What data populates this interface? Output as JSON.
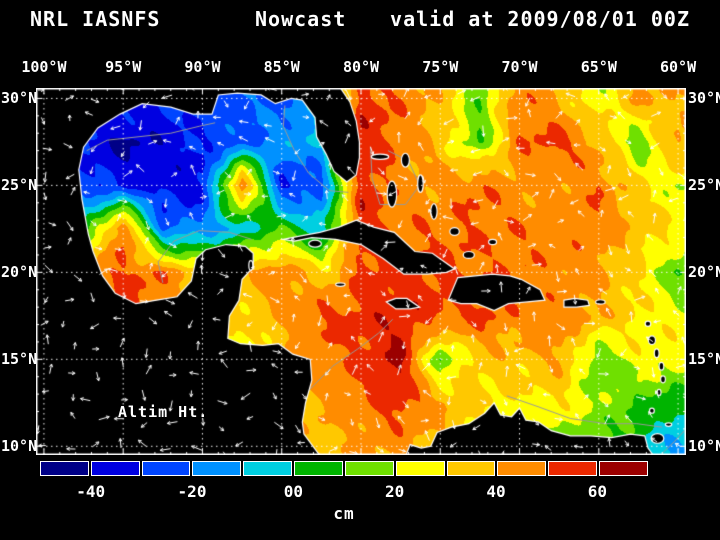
{
  "header": {
    "left": "NRL IASNFS",
    "center": "Nowcast",
    "right": "valid at 2009/08/01 00Z"
  },
  "map": {
    "annotation": "Altim Ht."
  },
  "colorbar": {
    "unit": "cm"
  },
  "chart_data": {
    "type": "heatmap",
    "title": "NRL IASNFS Nowcast valid at 2009/08/01 00Z",
    "variable": "Altim Ht.",
    "units": "cm",
    "lon_domain": [
      -100.5,
      -59.5
    ],
    "lat_domain": [
      9.5,
      30.6
    ],
    "lon_ticks": {
      "values": [
        -100,
        -95,
        -90,
        -85,
        -80,
        -75,
        -70,
        -65,
        -60
      ],
      "labels": [
        "100°W",
        "95°W",
        "90°W",
        "85°W",
        "80°W",
        "75°W",
        "70°W",
        "65°W",
        "60°W"
      ]
    },
    "lat_ticks": {
      "values": [
        30,
        25,
        20,
        15,
        10
      ],
      "labels": [
        "30°N",
        "25°N",
        "20°N",
        "15°N",
        "10°N"
      ]
    },
    "scale": {
      "min": -50,
      "max": 70,
      "step": 10,
      "unit": "cm",
      "colors": [
        "#000087",
        "#0000e1",
        "#0045ff",
        "#0091ff",
        "#00cfe1",
        "#00b400",
        "#6fe000",
        "#ffff00",
        "#ffc800",
        "#ff8c00",
        "#eb2800",
        "#9b0000"
      ],
      "tick_values": [
        -40,
        -20,
        0,
        20,
        40,
        60
      ],
      "tick_labels": [
        "-40",
        "-20",
        "00",
        "20",
        "40",
        "60"
      ]
    },
    "grid_lon": [
      -100,
      -97.5,
      -95,
      -92.5,
      -90,
      -87.5,
      -85,
      -82.5,
      -80,
      -77.5,
      -75,
      -72.5,
      -70,
      -67.5,
      -65,
      -62.5,
      -60
    ],
    "grid_lat": [
      30,
      27.5,
      25,
      22.5,
      20,
      17.5,
      15,
      12.5,
      10
    ],
    "values": [
      [
        -18,
        -22,
        -26,
        -30,
        -24,
        -20,
        -24,
        -12,
        55,
        48,
        38,
        12,
        50,
        38,
        22,
        42,
        38
      ],
      [
        -20,
        -32,
        -42,
        -36,
        -30,
        -24,
        -14,
        -8,
        58,
        48,
        36,
        10,
        48,
        54,
        38,
        12,
        42
      ],
      [
        -14,
        -26,
        -32,
        -36,
        -34,
        53,
        -32,
        -24,
        58,
        44,
        42,
        50,
        42,
        44,
        48,
        32,
        20
      ],
      [
        -8,
        2,
        52,
        -22,
        -16,
        -6,
        10,
        -8,
        55,
        48,
        48,
        50,
        48,
        44,
        48,
        36,
        30
      ],
      [
        -6,
        42,
        52,
        48,
        32,
        38,
        48,
        32,
        52,
        54,
        52,
        48,
        48,
        46,
        42,
        32,
        10
      ],
      [
        2,
        42,
        52,
        46,
        36,
        30,
        42,
        52,
        54,
        58,
        52,
        52,
        46,
        46,
        40,
        30,
        26
      ],
      [
        2,
        12,
        46,
        42,
        32,
        22,
        36,
        46,
        52,
        62,
        10,
        36,
        36,
        42,
        10,
        26,
        26
      ],
      [
        0,
        0,
        2,
        2,
        22,
        30,
        36,
        42,
        46,
        56,
        42,
        30,
        26,
        30,
        20,
        10,
        2
      ],
      [
        0,
        0,
        0,
        2,
        12,
        22,
        32,
        36,
        42,
        42,
        36,
        26,
        20,
        14,
        10,
        2,
        -14
      ]
    ],
    "vectors": {
      "glyph": "arrow",
      "color": "#ffffff"
    },
    "geo": {
      "contour_color": "#999999",
      "land_polygons": [
        {
          "name": "mainland",
          "pts": [
            [
              -100.5,
              30.6
            ],
            [
              -81.3,
              30.6
            ],
            [
              -80.7,
              29.8
            ],
            [
              -80.3,
              28.7
            ],
            [
              -80.1,
              27.5
            ],
            [
              -80.1,
              26.6
            ],
            [
              -80.3,
              25.6
            ],
            [
              -80.9,
              25.2
            ],
            [
              -81.7,
              25.8
            ],
            [
              -82.2,
              26.8
            ],
            [
              -82.8,
              27.8
            ],
            [
              -82.9,
              28.9
            ],
            [
              -83.7,
              29.9
            ],
            [
              -84.4,
              30.0
            ],
            [
              -85.4,
              29.7
            ],
            [
              -86.3,
              30.2
            ],
            [
              -87.8,
              30.3
            ],
            [
              -89.0,
              30.2
            ],
            [
              -89.4,
              29.1
            ],
            [
              -90.6,
              29.1
            ],
            [
              -92.0,
              29.5
            ],
            [
              -93.8,
              29.7
            ],
            [
              -95.2,
              29.1
            ],
            [
              -96.6,
              28.3
            ],
            [
              -97.5,
              27.2
            ],
            [
              -97.8,
              25.9
            ],
            [
              -97.6,
              24.2
            ],
            [
              -97.2,
              22.2
            ],
            [
              -96.9,
              21.2
            ],
            [
              -96.3,
              19.8
            ],
            [
              -95.5,
              18.8
            ],
            [
              -94.2,
              18.2
            ],
            [
              -92.9,
              18.4
            ],
            [
              -91.6,
              18.6
            ],
            [
              -90.7,
              19.5
            ],
            [
              -90.4,
              20.8
            ],
            [
              -89.8,
              21.3
            ],
            [
              -88.5,
              21.6
            ],
            [
              -87.3,
              21.5
            ],
            [
              -86.8,
              21.1
            ],
            [
              -86.8,
              20.3
            ],
            [
              -87.5,
              19.6
            ],
            [
              -87.7,
              18.4
            ],
            [
              -88.3,
              17.5
            ],
            [
              -88.4,
              16.2
            ],
            [
              -87.6,
              15.9
            ],
            [
              -86.2,
              15.8
            ],
            [
              -85.2,
              15.9
            ],
            [
              -84.3,
              15.3
            ],
            [
              -83.2,
              15.0
            ],
            [
              -83.1,
              13.8
            ],
            [
              -83.5,
              12.5
            ],
            [
              -83.7,
              11.4
            ],
            [
              -83.6,
              10.7
            ],
            [
              -82.7,
              9.6
            ],
            [
              -82.4,
              9.4
            ],
            [
              -100.5,
              9.4
            ]
          ]
        },
        {
          "name": "south-america",
          "pts": [
            [
              -77.2,
              9.4
            ],
            [
              -76.9,
              10.1
            ],
            [
              -76.2,
              9.9
            ],
            [
              -75.6,
              10.0
            ],
            [
              -75.2,
              10.8
            ],
            [
              -74.3,
              11.1
            ],
            [
              -73.2,
              11.3
            ],
            [
              -72.2,
              11.9
            ],
            [
              -71.6,
              12.5
            ],
            [
              -71.2,
              11.8
            ],
            [
              -70.5,
              11.7
            ],
            [
              -70.0,
              12.2
            ],
            [
              -69.6,
              11.5
            ],
            [
              -68.8,
              11.4
            ],
            [
              -68.0,
              10.9
            ],
            [
              -66.8,
              10.6
            ],
            [
              -65.5,
              10.6
            ],
            [
              -64.2,
              10.5
            ],
            [
              -63.0,
              10.7
            ],
            [
              -62.1,
              10.6
            ],
            [
              -61.9,
              9.9
            ],
            [
              -61.5,
              9.4
            ]
          ]
        },
        {
          "name": "cuba",
          "pts": [
            [
              -84.9,
              21.9
            ],
            [
              -83.8,
              22.1
            ],
            [
              -82.6,
              22.3
            ],
            [
              -81.4,
              22.6
            ],
            [
              -80.3,
              23.0
            ],
            [
              -79.2,
              22.6
            ],
            [
              -77.9,
              22.3
            ],
            [
              -76.6,
              21.2
            ],
            [
              -75.5,
              21.1
            ],
            [
              -74.1,
              20.2
            ],
            [
              -74.6,
              20.0
            ],
            [
              -75.8,
              19.9
            ],
            [
              -77.3,
              19.9
            ],
            [
              -78.6,
              20.8
            ],
            [
              -80.0,
              21.6
            ],
            [
              -81.6,
              21.9
            ],
            [
              -83.1,
              22.0
            ],
            [
              -84.2,
              21.8
            ]
          ]
        },
        {
          "name": "hispaniola",
          "pts": [
            [
              -74.5,
              18.4
            ],
            [
              -73.9,
              19.7
            ],
            [
              -72.8,
              19.8
            ],
            [
              -71.7,
              19.9
            ],
            [
              -70.6,
              19.8
            ],
            [
              -69.9,
              19.6
            ],
            [
              -68.7,
              19.0
            ],
            [
              -68.4,
              18.4
            ],
            [
              -69.5,
              18.3
            ],
            [
              -70.7,
              18.2
            ],
            [
              -71.6,
              17.8
            ],
            [
              -72.7,
              18.2
            ],
            [
              -73.7,
              18.2
            ]
          ]
        },
        {
          "name": "jamaica",
          "pts": [
            [
              -78.4,
              18.3
            ],
            [
              -77.8,
              18.5
            ],
            [
              -77.1,
              18.5
            ],
            [
              -76.3,
              18.0
            ],
            [
              -76.9,
              17.9
            ],
            [
              -77.8,
              17.9
            ]
          ]
        },
        {
          "name": "puerto-rico",
          "pts": [
            [
              -67.2,
              18.4
            ],
            [
              -66.5,
              18.5
            ],
            [
              -65.7,
              18.4
            ],
            [
              -65.6,
              18.1
            ],
            [
              -66.4,
              18.0
            ],
            [
              -67.2,
              18.0
            ]
          ]
        }
      ],
      "islets": [
        [
          -78.8,
          26.65,
          1.1,
          0.3
        ],
        [
          -77.2,
          26.45,
          0.5,
          0.8
        ],
        [
          -78.05,
          24.5,
          0.6,
          1.5
        ],
        [
          -76.25,
          25.1,
          0.35,
          1.0
        ],
        [
          -75.4,
          23.5,
          0.4,
          0.9
        ],
        [
          -74.1,
          22.35,
          0.6,
          0.45
        ],
        [
          -73.2,
          21.0,
          0.7,
          0.4
        ],
        [
          -71.7,
          21.75,
          0.5,
          0.3
        ],
        [
          -64.9,
          18.3,
          0.6,
          0.25
        ],
        [
          -61.9,
          17.05,
          0.35,
          0.3
        ],
        [
          -61.65,
          16.1,
          0.45,
          0.5
        ],
        [
          -61.35,
          15.35,
          0.3,
          0.5
        ],
        [
          -61.05,
          14.6,
          0.3,
          0.45
        ],
        [
          -60.95,
          13.85,
          0.3,
          0.4
        ],
        [
          -61.2,
          13.1,
          0.25,
          0.35
        ],
        [
          -61.65,
          12.05,
          0.3,
          0.3
        ],
        [
          -61.3,
          10.45,
          0.8,
          0.55
        ],
        [
          -60.6,
          11.25,
          0.4,
          0.2
        ],
        [
          -86.95,
          20.4,
          0.25,
          0.55
        ],
        [
          -82.9,
          21.65,
          0.8,
          0.4
        ],
        [
          -81.3,
          19.3,
          0.6,
          0.2
        ]
      ],
      "shelf_contours": [
        [
          [
            -97.3,
            27.0
          ],
          [
            -96.0,
            27.6
          ],
          [
            -94.0,
            27.8
          ],
          [
            -92.0,
            28.0
          ],
          [
            -90.2,
            28.4
          ],
          [
            -89.2,
            28.6
          ]
        ],
        [
          [
            -84.8,
            29.6
          ],
          [
            -84.9,
            28.4
          ],
          [
            -84.2,
            27.0
          ],
          [
            -83.3,
            25.7
          ],
          [
            -82.0,
            24.7
          ],
          [
            -80.8,
            24.6
          ]
        ],
        [
          [
            -92.5,
            19.4
          ],
          [
            -92.8,
            20.6
          ],
          [
            -91.8,
            21.8
          ],
          [
            -90.2,
            22.4
          ],
          [
            -88.3,
            22.3
          ],
          [
            -86.9,
            21.9
          ]
        ],
        [
          [
            -83.3,
            13.2
          ],
          [
            -81.8,
            14.6
          ],
          [
            -80.2,
            15.6
          ],
          [
            -78.9,
            16.5
          ],
          [
            -78.0,
            17.3
          ]
        ],
        [
          [
            -79.4,
            27.2
          ],
          [
            -79.3,
            25.4
          ],
          [
            -78.8,
            23.9
          ],
          [
            -77.2,
            23.9
          ],
          [
            -76.3,
            25.0
          ],
          [
            -77.0,
            26.4
          ],
          [
            -78.3,
            27.0
          ]
        ],
        [
          [
            -70.8,
            12.9
          ],
          [
            -68.9,
            12.3
          ],
          [
            -66.8,
            11.6
          ],
          [
            -64.6,
            11.3
          ],
          [
            -62.6,
            11.3
          ],
          [
            -61.0,
            11.1
          ]
        ],
        [
          [
            -61.0,
            9.6
          ],
          [
            -60.2,
            10.3
          ],
          [
            -59.6,
            10.9
          ]
        ]
      ]
    }
  }
}
